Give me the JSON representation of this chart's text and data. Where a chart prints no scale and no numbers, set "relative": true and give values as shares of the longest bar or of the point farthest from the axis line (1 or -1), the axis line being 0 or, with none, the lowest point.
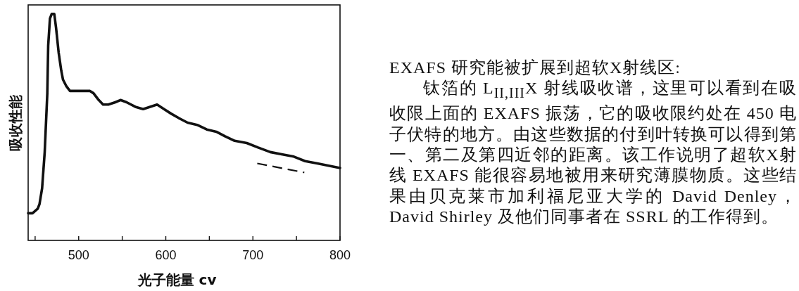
{
  "chart_data": {
    "type": "line",
    "xlabel": "光子能量 cv",
    "ylabel": "吸收性能",
    "relative": true,
    "xlim": [
      442,
      800
    ],
    "xticks": [
      {
        "value": 450,
        "label": null
      },
      500,
      {
        "value": 550,
        "label": null
      },
      600,
      {
        "value": 650,
        "label": null
      },
      700,
      {
        "value": 750,
        "label": null
      },
      800
    ],
    "series": [
      {
        "color": "#111111",
        "line_style": "solid",
        "x": [
          442,
          447,
          453,
          455,
          458,
          461,
          464,
          465,
          467,
          469,
          472,
          474,
          477,
          480,
          482,
          486,
          490,
          499,
          507,
          513,
          517,
          523,
          528,
          534,
          542,
          548,
          555,
          565,
          574,
          582,
          590,
          598,
          606,
          615,
          625,
          636,
          647,
          658,
          668,
          679,
          693,
          706,
          720,
          733,
          747,
          760,
          774,
          787,
          800
        ],
        "values": [
          0.12,
          0.12,
          0.14,
          0.16,
          0.23,
          0.39,
          0.65,
          0.86,
          0.98,
          1.0,
          1.0,
          0.94,
          0.83,
          0.75,
          0.71,
          0.68,
          0.66,
          0.66,
          0.66,
          0.66,
          0.65,
          0.62,
          0.6,
          0.6,
          0.61,
          0.62,
          0.61,
          0.59,
          0.58,
          0.59,
          0.6,
          0.58,
          0.56,
          0.54,
          0.52,
          0.51,
          0.49,
          0.48,
          0.46,
          0.44,
          0.43,
          0.41,
          0.39,
          0.38,
          0.37,
          0.35,
          0.34,
          0.33,
          0.32
        ]
      },
      {
        "color": "#111111",
        "line_style": "dashed",
        "x": [
          705,
          759
        ],
        "values": [
          0.34,
          0.3
        ]
      }
    ],
    "annotations": [
      "EXAFS 研究能被扩展到超软X射线区:",
      "钛箔的 L$_{II,III}$X 射线吸收谱，这里可以看到在吸收限上面的 EXAFS 振荡，它的吸收限约处在 450 电子伏特的地方。由这些数据的付到叶转换可以得到第一、第二及第四近邻的距离。该工作说明了超软X射线 EXAFS 能很容易地被用来研究薄膜物质。这些结果由贝克莱市加利福尼亚大学的 David Denley，David Shirley 及他们同事者在 SSRL 的工作得到。"
    ]
  }
}
